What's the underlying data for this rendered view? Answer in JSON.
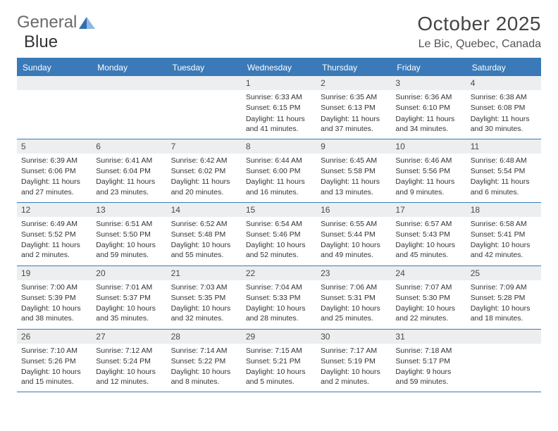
{
  "logo": {
    "text_g": "General",
    "text_b": "Blue"
  },
  "title": "October 2025",
  "location": "Le Bic, Quebec, Canada",
  "dow": [
    "Sunday",
    "Monday",
    "Tuesday",
    "Wednesday",
    "Thursday",
    "Friday",
    "Saturday"
  ],
  "colors": {
    "accent": "#3a7ab8",
    "bar": "#eceeef",
    "text": "#333333"
  },
  "weeks": [
    [
      null,
      null,
      null,
      {
        "n": "1",
        "sr": "6:33 AM",
        "ss": "6:15 PM",
        "dl": "Daylight: 11 hours and 41 minutes."
      },
      {
        "n": "2",
        "sr": "6:35 AM",
        "ss": "6:13 PM",
        "dl": "Daylight: 11 hours and 37 minutes."
      },
      {
        "n": "3",
        "sr": "6:36 AM",
        "ss": "6:10 PM",
        "dl": "Daylight: 11 hours and 34 minutes."
      },
      {
        "n": "4",
        "sr": "6:38 AM",
        "ss": "6:08 PM",
        "dl": "Daylight: 11 hours and 30 minutes."
      }
    ],
    [
      {
        "n": "5",
        "sr": "6:39 AM",
        "ss": "6:06 PM",
        "dl": "Daylight: 11 hours and 27 minutes."
      },
      {
        "n": "6",
        "sr": "6:41 AM",
        "ss": "6:04 PM",
        "dl": "Daylight: 11 hours and 23 minutes."
      },
      {
        "n": "7",
        "sr": "6:42 AM",
        "ss": "6:02 PM",
        "dl": "Daylight: 11 hours and 20 minutes."
      },
      {
        "n": "8",
        "sr": "6:44 AM",
        "ss": "6:00 PM",
        "dl": "Daylight: 11 hours and 16 minutes."
      },
      {
        "n": "9",
        "sr": "6:45 AM",
        "ss": "5:58 PM",
        "dl": "Daylight: 11 hours and 13 minutes."
      },
      {
        "n": "10",
        "sr": "6:46 AM",
        "ss": "5:56 PM",
        "dl": "Daylight: 11 hours and 9 minutes."
      },
      {
        "n": "11",
        "sr": "6:48 AM",
        "ss": "5:54 PM",
        "dl": "Daylight: 11 hours and 6 minutes."
      }
    ],
    [
      {
        "n": "12",
        "sr": "6:49 AM",
        "ss": "5:52 PM",
        "dl": "Daylight: 11 hours and 2 minutes."
      },
      {
        "n": "13",
        "sr": "6:51 AM",
        "ss": "5:50 PM",
        "dl": "Daylight: 10 hours and 59 minutes."
      },
      {
        "n": "14",
        "sr": "6:52 AM",
        "ss": "5:48 PM",
        "dl": "Daylight: 10 hours and 55 minutes."
      },
      {
        "n": "15",
        "sr": "6:54 AM",
        "ss": "5:46 PM",
        "dl": "Daylight: 10 hours and 52 minutes."
      },
      {
        "n": "16",
        "sr": "6:55 AM",
        "ss": "5:44 PM",
        "dl": "Daylight: 10 hours and 49 minutes."
      },
      {
        "n": "17",
        "sr": "6:57 AM",
        "ss": "5:43 PM",
        "dl": "Daylight: 10 hours and 45 minutes."
      },
      {
        "n": "18",
        "sr": "6:58 AM",
        "ss": "5:41 PM",
        "dl": "Daylight: 10 hours and 42 minutes."
      }
    ],
    [
      {
        "n": "19",
        "sr": "7:00 AM",
        "ss": "5:39 PM",
        "dl": "Daylight: 10 hours and 38 minutes."
      },
      {
        "n": "20",
        "sr": "7:01 AM",
        "ss": "5:37 PM",
        "dl": "Daylight: 10 hours and 35 minutes."
      },
      {
        "n": "21",
        "sr": "7:03 AM",
        "ss": "5:35 PM",
        "dl": "Daylight: 10 hours and 32 minutes."
      },
      {
        "n": "22",
        "sr": "7:04 AM",
        "ss": "5:33 PM",
        "dl": "Daylight: 10 hours and 28 minutes."
      },
      {
        "n": "23",
        "sr": "7:06 AM",
        "ss": "5:31 PM",
        "dl": "Daylight: 10 hours and 25 minutes."
      },
      {
        "n": "24",
        "sr": "7:07 AM",
        "ss": "5:30 PM",
        "dl": "Daylight: 10 hours and 22 minutes."
      },
      {
        "n": "25",
        "sr": "7:09 AM",
        "ss": "5:28 PM",
        "dl": "Daylight: 10 hours and 18 minutes."
      }
    ],
    [
      {
        "n": "26",
        "sr": "7:10 AM",
        "ss": "5:26 PM",
        "dl": "Daylight: 10 hours and 15 minutes."
      },
      {
        "n": "27",
        "sr": "7:12 AM",
        "ss": "5:24 PM",
        "dl": "Daylight: 10 hours and 12 minutes."
      },
      {
        "n": "28",
        "sr": "7:14 AM",
        "ss": "5:22 PM",
        "dl": "Daylight: 10 hours and 8 minutes."
      },
      {
        "n": "29",
        "sr": "7:15 AM",
        "ss": "5:21 PM",
        "dl": "Daylight: 10 hours and 5 minutes."
      },
      {
        "n": "30",
        "sr": "7:17 AM",
        "ss": "5:19 PM",
        "dl": "Daylight: 10 hours and 2 minutes."
      },
      {
        "n": "31",
        "sr": "7:18 AM",
        "ss": "5:17 PM",
        "dl": "Daylight: 9 hours and 59 minutes."
      },
      null
    ]
  ],
  "labels": {
    "sunrise": "Sunrise:",
    "sunset": "Sunset:"
  }
}
